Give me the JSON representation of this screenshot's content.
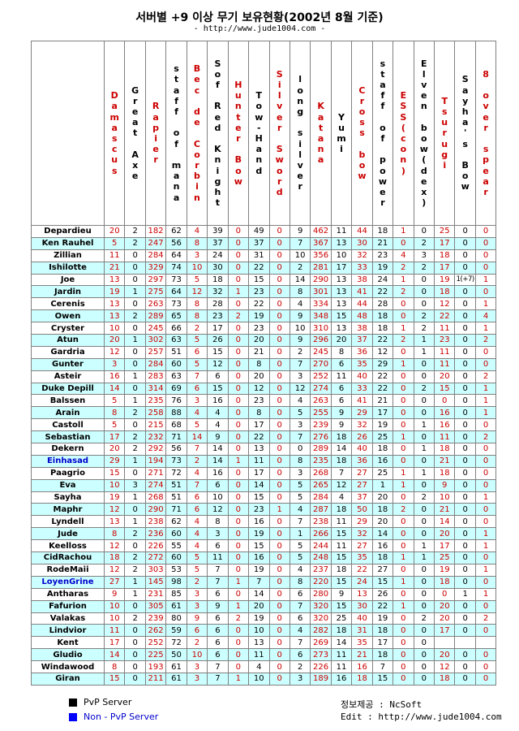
{
  "title": "서버별 +9 이상 무기 보유현황(2002년 8월 기준)",
  "subtitle": "- http://www.jude1004.com -",
  "columns": [
    {
      "label": "Damascus",
      "color": "red"
    },
    {
      "label": "Great Axe",
      "color": "black"
    },
    {
      "label": "Rapier",
      "color": "red"
    },
    {
      "label": "staff of mana",
      "color": "black"
    },
    {
      "label": "Bec de Corbin",
      "color": "red"
    },
    {
      "label": "Sof Red Knight",
      "color": "black"
    },
    {
      "label": "Hunter Bow",
      "color": "red"
    },
    {
      "label": "Tow-Hand",
      "color": "black"
    },
    {
      "label": "Silver Sword",
      "color": "red"
    },
    {
      "label": "long silver",
      "color": "black"
    },
    {
      "label": "Katana",
      "color": "red"
    },
    {
      "label": "Yumi",
      "color": "black"
    },
    {
      "label": "Cross bow",
      "color": "red"
    },
    {
      "label": "staff of power",
      "color": "black"
    },
    {
      "label": "ESS(con)",
      "color": "red"
    },
    {
      "label": "Elven bow(dex)",
      "color": "black"
    },
    {
      "label": "Tsurugi",
      "color": "red"
    },
    {
      "label": "Sayha's Bow",
      "color": "black"
    },
    {
      "label": "8 over spear",
      "color": "red"
    }
  ],
  "rows": [
    {
      "server": "Depardieu",
      "pvp": true,
      "values": [
        "20",
        "2",
        "182",
        "62",
        "4",
        "39",
        "0",
        "49",
        "0",
        "9",
        "462",
        "11",
        "44",
        "18",
        "1",
        "0",
        "25",
        "0",
        "0"
      ]
    },
    {
      "server": "Ken Rauhel",
      "pvp": true,
      "values": [
        "5",
        "2",
        "247",
        "56",
        "8",
        "37",
        "0",
        "37",
        "0",
        "7",
        "367",
        "13",
        "30",
        "21",
        "0",
        "2",
        "17",
        "0",
        "0"
      ]
    },
    {
      "server": "Zillian",
      "pvp": true,
      "values": [
        "11",
        "0",
        "284",
        "64",
        "3",
        "24",
        "0",
        "31",
        "0",
        "10",
        "356",
        "10",
        "32",
        "23",
        "4",
        "3",
        "18",
        "0",
        "0"
      ]
    },
    {
      "server": "Ishilotte",
      "pvp": true,
      "values": [
        "21",
        "0",
        "329",
        "74",
        "10",
        "30",
        "0",
        "22",
        "0",
        "2",
        "281",
        "17",
        "33",
        "19",
        "2",
        "2",
        "17",
        "0",
        "0"
      ]
    },
    {
      "server": "Joe",
      "pvp": true,
      "values": [
        "13",
        "0",
        "297",
        "73",
        "5",
        "18",
        "0",
        "15",
        "0",
        "14",
        "290",
        "13",
        "38",
        "24",
        "1",
        "0",
        "19",
        "1(+7)",
        "1"
      ]
    },
    {
      "server": "Jardin",
      "pvp": true,
      "values": [
        "19",
        "1",
        "275",
        "64",
        "12",
        "32",
        "1",
        "23",
        "0",
        "8",
        "301",
        "13",
        "41",
        "22",
        "2",
        "0",
        "18",
        "0",
        "0"
      ]
    },
    {
      "server": "Cerenis",
      "pvp": true,
      "values": [
        "13",
        "0",
        "263",
        "73",
        "8",
        "28",
        "0",
        "22",
        "0",
        "4",
        "334",
        "13",
        "44",
        "28",
        "0",
        "0",
        "12",
        "0",
        "1"
      ]
    },
    {
      "server": "Owen",
      "pvp": true,
      "values": [
        "13",
        "2",
        "289",
        "65",
        "8",
        "23",
        "2",
        "19",
        "0",
        "9",
        "348",
        "15",
        "48",
        "18",
        "0",
        "2",
        "22",
        "0",
        "4"
      ]
    },
    {
      "server": "Cryster",
      "pvp": true,
      "values": [
        "10",
        "0",
        "245",
        "66",
        "2",
        "17",
        "0",
        "23",
        "0",
        "10",
        "310",
        "13",
        "38",
        "18",
        "1",
        "2",
        "11",
        "0",
        "1"
      ]
    },
    {
      "server": "Atun",
      "pvp": true,
      "values": [
        "20",
        "1",
        "302",
        "63",
        "5",
        "26",
        "0",
        "20",
        "0",
        "9",
        "296",
        "20",
        "37",
        "22",
        "2",
        "1",
        "23",
        "0",
        "2"
      ]
    },
    {
      "server": "Gardria",
      "pvp": true,
      "values": [
        "12",
        "0",
        "257",
        "51",
        "6",
        "15",
        "0",
        "21",
        "0",
        "2",
        "245",
        "8",
        "36",
        "12",
        "0",
        "1",
        "11",
        "0",
        "0"
      ]
    },
    {
      "server": "Gunter",
      "pvp": true,
      "values": [
        "3",
        "0",
        "284",
        "60",
        "5",
        "12",
        "0",
        "8",
        "0",
        "7",
        "270",
        "6",
        "35",
        "29",
        "1",
        "0",
        "11",
        "0",
        "0"
      ]
    },
    {
      "server": "Asteir",
      "pvp": true,
      "values": [
        "16",
        "1",
        "283",
        "63",
        "7",
        "6",
        "0",
        "20",
        "0",
        "3",
        "252",
        "11",
        "40",
        "22",
        "0",
        "0",
        "20",
        "0",
        "2"
      ]
    },
    {
      "server": "Duke Depill",
      "pvp": true,
      "values": [
        "14",
        "0",
        "314",
        "69",
        "6",
        "15",
        "0",
        "12",
        "0",
        "12",
        "274",
        "6",
        "33",
        "22",
        "0",
        "2",
        "15",
        "0",
        "1"
      ]
    },
    {
      "server": "Balssen",
      "pvp": true,
      "values": [
        "5",
        "1",
        "235",
        "76",
        "3",
        "16",
        "0",
        "23",
        "0",
        "4",
        "263",
        "6",
        "41",
        "21",
        "0",
        "0",
        "0",
        "0",
        "1"
      ]
    },
    {
      "server": "Arain",
      "pvp": true,
      "values": [
        "8",
        "2",
        "258",
        "88",
        "4",
        "4",
        "0",
        "8",
        "0",
        "5",
        "255",
        "9",
        "29",
        "17",
        "0",
        "0",
        "16",
        "0",
        "1"
      ]
    },
    {
      "server": "Castoll",
      "pvp": true,
      "values": [
        "5",
        "0",
        "215",
        "68",
        "5",
        "4",
        "0",
        "17",
        "0",
        "3",
        "239",
        "9",
        "32",
        "19",
        "0",
        "1",
        "16",
        "0",
        "0"
      ]
    },
    {
      "server": "Sebastian",
      "pvp": true,
      "values": [
        "17",
        "2",
        "232",
        "71",
        "14",
        "9",
        "0",
        "22",
        "0",
        "7",
        "276",
        "18",
        "26",
        "25",
        "1",
        "0",
        "11",
        "0",
        "2"
      ]
    },
    {
      "server": "Dekern",
      "pvp": true,
      "values": [
        "20",
        "2",
        "292",
        "56",
        "7",
        "14",
        "0",
        "13",
        "0",
        "0",
        "289",
        "14",
        "40",
        "18",
        "0",
        "1",
        "18",
        "0",
        "0"
      ]
    },
    {
      "server": "Einhasad",
      "pvp": false,
      "values": [
        "29",
        "1",
        "194",
        "73",
        "2",
        "14",
        "1",
        "11",
        "0",
        "8",
        "235",
        "18",
        "36",
        "16",
        "0",
        "0",
        "21",
        "0",
        "0"
      ]
    },
    {
      "server": "Paagrio",
      "pvp": true,
      "values": [
        "15",
        "0",
        "271",
        "72",
        "4",
        "16",
        "0",
        "17",
        "0",
        "3",
        "268",
        "7",
        "27",
        "25",
        "1",
        "1",
        "18",
        "0",
        "0"
      ]
    },
    {
      "server": "Eva",
      "pvp": true,
      "values": [
        "10",
        "3",
        "274",
        "51",
        "7",
        "6",
        "0",
        "14",
        "0",
        "5",
        "265",
        "12",
        "27",
        "1",
        "1",
        "0",
        "9",
        "0",
        "0"
      ]
    },
    {
      "server": "Sayha",
      "pvp": true,
      "values": [
        "19",
        "1",
        "268",
        "51",
        "6",
        "10",
        "0",
        "15",
        "0",
        "5",
        "284",
        "4",
        "37",
        "20",
        "0",
        "2",
        "10",
        "0",
        "1"
      ]
    },
    {
      "server": "Maphr",
      "pvp": true,
      "values": [
        "12",
        "0",
        "290",
        "71",
        "6",
        "12",
        "0",
        "23",
        "1",
        "4",
        "287",
        "18",
        "50",
        "18",
        "2",
        "0",
        "21",
        "0",
        "0"
      ]
    },
    {
      "server": "Lyndell",
      "pvp": true,
      "values": [
        "13",
        "1",
        "238",
        "62",
        "4",
        "8",
        "0",
        "16",
        "0",
        "7",
        "238",
        "11",
        "29",
        "20",
        "0",
        "0",
        "14",
        "0",
        "0"
      ]
    },
    {
      "server": "Jude",
      "pvp": true,
      "values": [
        "8",
        "2",
        "236",
        "60",
        "4",
        "3",
        "0",
        "19",
        "0",
        "1",
        "266",
        "15",
        "32",
        "14",
        "0",
        "0",
        "20",
        "0",
        "1"
      ]
    },
    {
      "server": "Keelloss",
      "pvp": true,
      "values": [
        "12",
        "0",
        "226",
        "55",
        "4",
        "6",
        "0",
        "15",
        "0",
        "5",
        "244",
        "11",
        "27",
        "16",
        "0",
        "1",
        "17",
        "0",
        "1"
      ]
    },
    {
      "server": "CidRachou",
      "pvp": true,
      "values": [
        "18",
        "2",
        "272",
        "60",
        "5",
        "11",
        "0",
        "16",
        "0",
        "5",
        "248",
        "15",
        "35",
        "18",
        "1",
        "1",
        "25",
        "0",
        "0"
      ]
    },
    {
      "server": "RodeMaii",
      "pvp": true,
      "values": [
        "12",
        "2",
        "303",
        "53",
        "5",
        "7",
        "0",
        "19",
        "0",
        "4",
        "237",
        "18",
        "22",
        "27",
        "0",
        "0",
        "19",
        "0",
        "1"
      ]
    },
    {
      "server": "LoyenGrine",
      "pvp": false,
      "values": [
        "27",
        "1",
        "145",
        "98",
        "2",
        "7",
        "1",
        "7",
        "0",
        "8",
        "220",
        "15",
        "24",
        "15",
        "1",
        "0",
        "18",
        "0",
        "0"
      ]
    },
    {
      "server": "Antharas",
      "pvp": true,
      "values": [
        "9",
        "1",
        "231",
        "85",
        "3",
        "6",
        "0",
        "14",
        "0",
        "6",
        "280",
        "9",
        "13",
        "26",
        "0",
        "0",
        "0",
        "1",
        "1"
      ]
    },
    {
      "server": "Fafurion",
      "pvp": true,
      "values": [
        "10",
        "0",
        "305",
        "61",
        "3",
        "9",
        "1",
        "20",
        "0",
        "7",
        "320",
        "15",
        "30",
        "22",
        "1",
        "0",
        "20",
        "0",
        "0"
      ]
    },
    {
      "server": "Valakas",
      "pvp": true,
      "values": [
        "10",
        "2",
        "239",
        "80",
        "9",
        "6",
        "2",
        "19",
        "0",
        "6",
        "320",
        "25",
        "40",
        "19",
        "0",
        "2",
        "20",
        "0",
        "2"
      ]
    },
    {
      "server": "Lindvior",
      "pvp": true,
      "values": [
        "11",
        "0",
        "262",
        "59",
        "6",
        "6",
        "0",
        "10",
        "0",
        "4",
        "282",
        "18",
        "31",
        "18",
        "0",
        "0",
        "17",
        "0",
        "0"
      ]
    },
    {
      "server": "Kent",
      "pvp": true,
      "values": [
        "17",
        "0",
        "252",
        "72",
        "2",
        "6",
        "0",
        "13",
        "0",
        "7",
        "269",
        "14",
        "35",
        "17",
        "0",
        "0",
        "",
        "",
        ""
      ]
    },
    {
      "server": "Gludio",
      "pvp": true,
      "values": [
        "14",
        "0",
        "225",
        "50",
        "10",
        "6",
        "0",
        "11",
        "0",
        "6",
        "273",
        "11",
        "21",
        "18",
        "0",
        "0",
        "20",
        "0",
        "0"
      ]
    },
    {
      "server": "Windawood",
      "pvp": true,
      "values": [
        "8",
        "0",
        "193",
        "61",
        "3",
        "7",
        "0",
        "4",
        "0",
        "2",
        "226",
        "11",
        "16",
        "7",
        "0",
        "0",
        "12",
        "0",
        "0"
      ]
    },
    {
      "server": "Giran",
      "pvp": true,
      "values": [
        "15",
        "0",
        "211",
        "61",
        "3",
        "7",
        "1",
        "10",
        "0",
        "3",
        "189",
        "16",
        "18",
        "15",
        "0",
        "0",
        "18",
        "0",
        "0"
      ]
    }
  ],
  "legend": {
    "pvp_label": "PvP Server",
    "pvp_color": "#000000",
    "nonpvp_label": "Non - PvP Server",
    "nonpvp_color": "#0000ff"
  },
  "footer": {
    "source": "정보제공 : NcSoft",
    "edit": "Edit : http://www.jude1004.com"
  },
  "colors": {
    "red": "#cc0000",
    "black": "#000000",
    "alt_row": "#ccffff"
  }
}
